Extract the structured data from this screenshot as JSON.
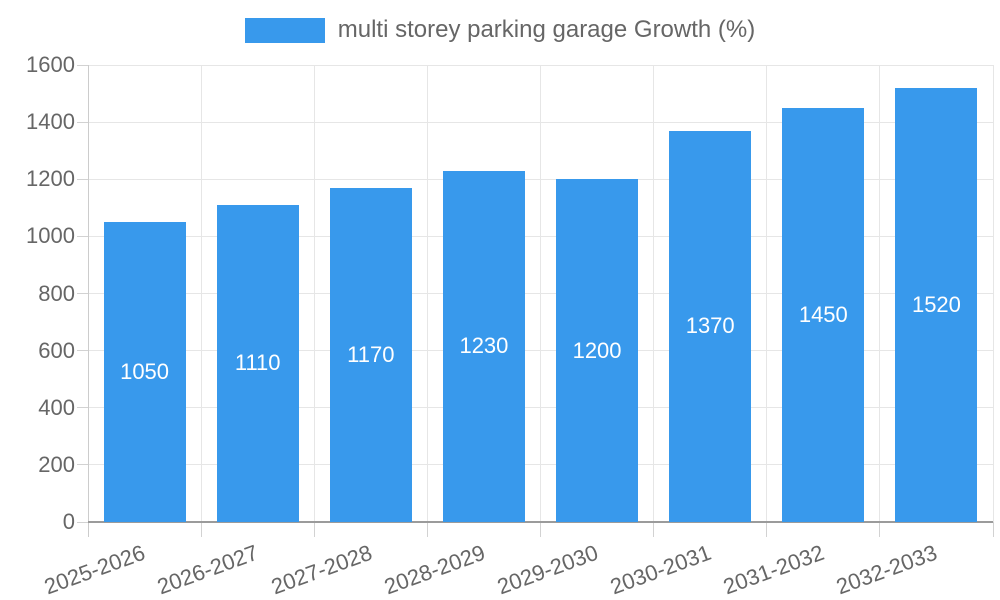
{
  "legend": {
    "label": "multi storey parking garage Growth (%)"
  },
  "colors": {
    "bar": "#3899EC",
    "grid": "#E6E6E6",
    "tick": "#D2D2D2",
    "axis_line": "#CCCCCC",
    "baseline": "#9B9B9B",
    "tick_text": "#666666",
    "bar_label_text": "#FFFFFF"
  },
  "chart_data": {
    "type": "bar",
    "title": "",
    "xlabel": "",
    "ylabel": "",
    "categories": [
      "2025-2026",
      "2026-2027",
      "2027-2028",
      "2028-2029",
      "2029-2030",
      "2030-2031",
      "2031-2032",
      "2032-2033"
    ],
    "series": [
      {
        "name": "multi storey parking garage Growth (%)",
        "values": [
          1050,
          1110,
          1170,
          1230,
          1200,
          1370,
          1450,
          1520
        ]
      }
    ],
    "value_labels": [
      "1050",
      "1110",
      "1170",
      "1230",
      "1200",
      "1370",
      "1450",
      "1520"
    ],
    "value_label_position": "inside-center",
    "yticks": [
      0,
      200,
      400,
      600,
      800,
      1000,
      1200,
      1400,
      1600
    ],
    "ylim": [
      0,
      1600
    ],
    "grid": "horizontal-and-vertical",
    "legend_position": "top",
    "x_tick_rotation_deg": -20
  }
}
